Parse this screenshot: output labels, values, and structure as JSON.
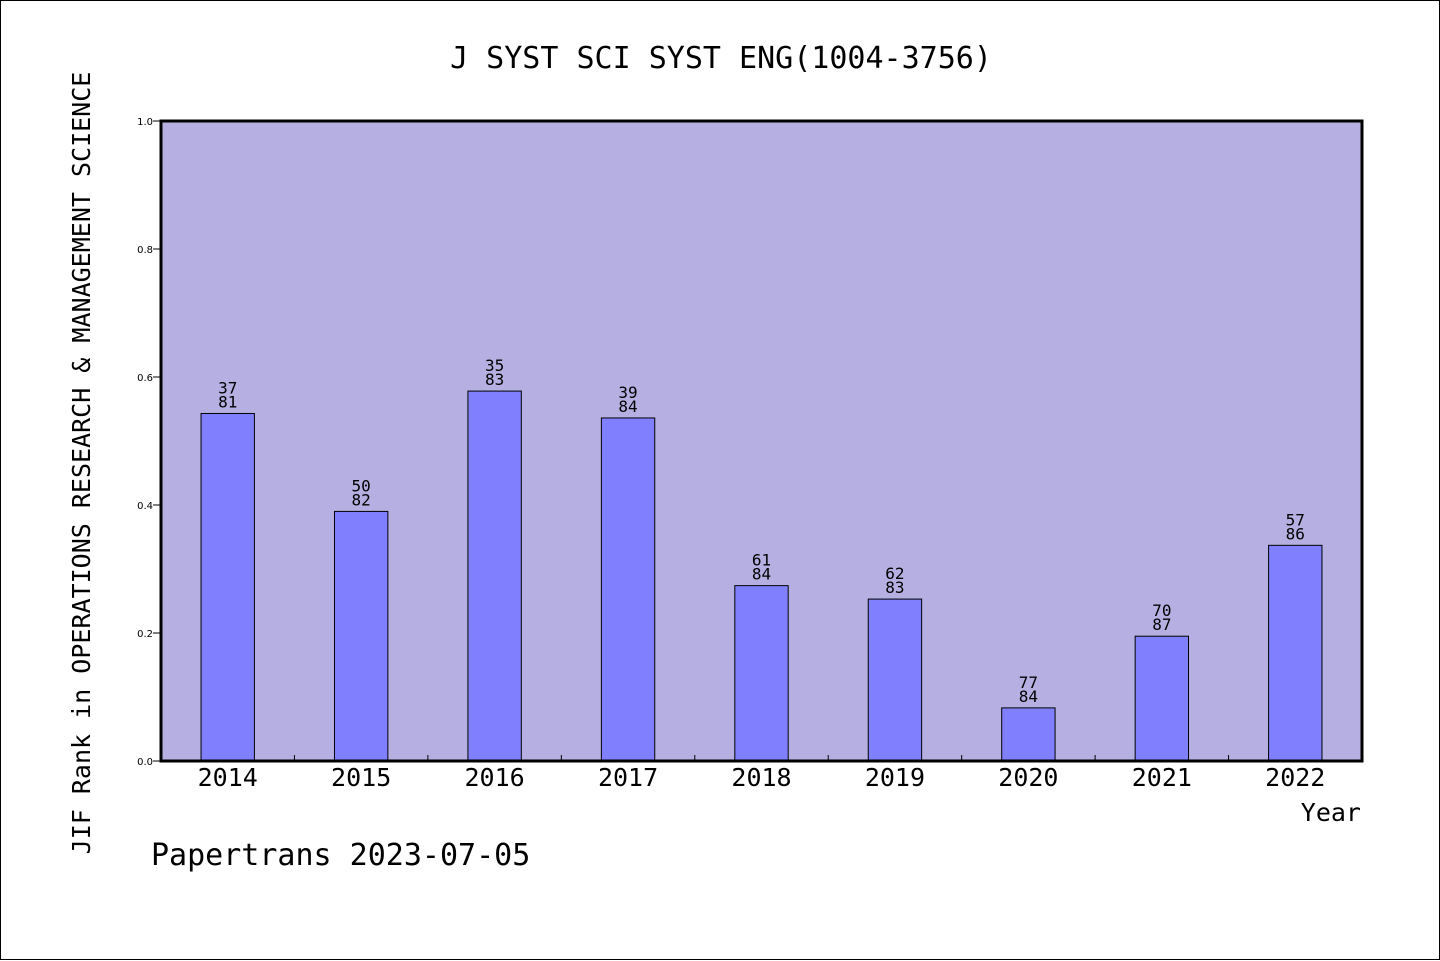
{
  "chart_data": {
    "type": "bar",
    "title": "J SYST SCI SYST ENG(1004-3756)",
    "xlabel": "Year",
    "ylabel": "JIF Rank in OPERATIONS RESEARCH & MANAGEMENT SCIENCE",
    "categories": [
      "2014",
      "2015",
      "2016",
      "2017",
      "2018",
      "2019",
      "2020",
      "2021",
      "2022"
    ],
    "values": [
      0.543,
      0.39,
      0.578,
      0.536,
      0.274,
      0.253,
      0.083,
      0.195,
      0.337
    ],
    "rank": [
      "37",
      "50",
      "35",
      "39",
      "61",
      "62",
      "77",
      "70",
      "57"
    ],
    "total": [
      "81",
      "82",
      "83",
      "84",
      "84",
      "83",
      "84",
      "87",
      "86"
    ],
    "yticks": [
      "0.0",
      "0.2",
      "0.4",
      "0.6",
      "0.8",
      "1.0"
    ],
    "ylim": [
      0,
      1.0
    ],
    "grid": false,
    "colors": {
      "plot_background": "#b6b0e2",
      "bar_fill": "#8080ff",
      "bar_stroke": "#000000"
    }
  },
  "footer": "Papertrans 2023-07-05"
}
